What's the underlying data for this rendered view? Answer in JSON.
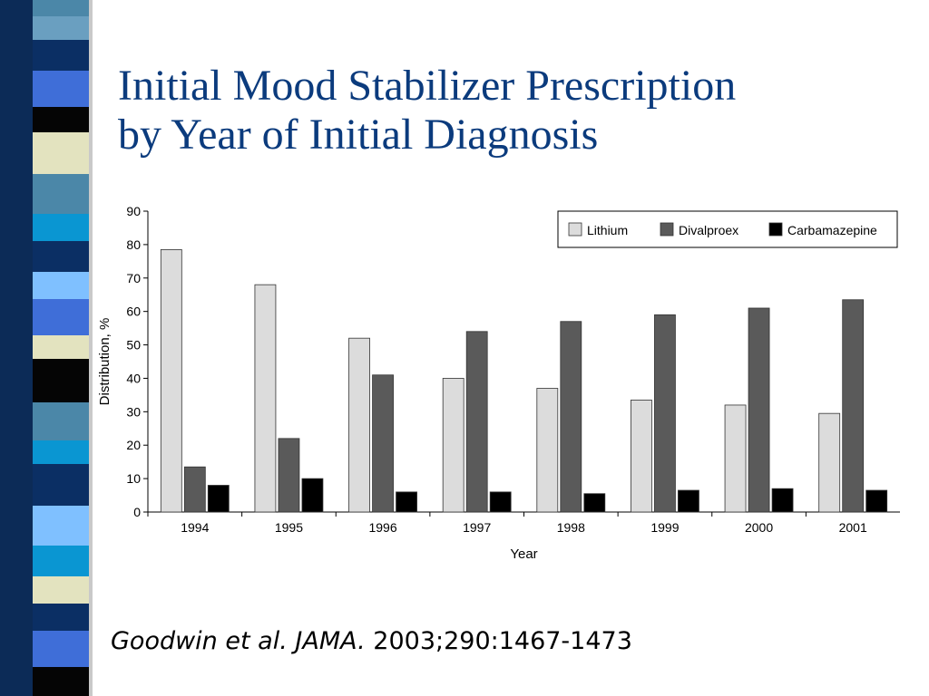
{
  "slide": {
    "title_line1": "Initial Mood Stabilizer Prescription",
    "title_line2": "by Year of Initial Diagnosis",
    "title_color": "#0b3b7d",
    "citation_authors": "Goodwin et al.",
    "citation_journal": "JAMA.",
    "citation_ref": "2003;290:1467-1473"
  },
  "chart_data": {
    "type": "bar",
    "title": "",
    "xlabel": "Year",
    "ylabel": "Distribution, %",
    "ylim": [
      0,
      90
    ],
    "yticks": [
      0,
      10,
      20,
      30,
      40,
      50,
      60,
      70,
      80,
      90
    ],
    "categories": [
      "1994",
      "1995",
      "1996",
      "1997",
      "1998",
      "1999",
      "2000",
      "2001"
    ],
    "legend_position": "top-right",
    "grid": false,
    "series": [
      {
        "name": "Lithium",
        "color": "#dcdcdc",
        "values": [
          78.5,
          68,
          52,
          40,
          37,
          33.5,
          32,
          29.5
        ]
      },
      {
        "name": "Divalproex",
        "color": "#5a5a5a",
        "values": [
          13.5,
          22,
          41,
          54,
          57,
          59,
          61,
          63.5
        ]
      },
      {
        "name": "Carbamazepine",
        "color": "#000000",
        "values": [
          8,
          10,
          6,
          6,
          5.5,
          6.5,
          7,
          6.5
        ]
      }
    ]
  }
}
